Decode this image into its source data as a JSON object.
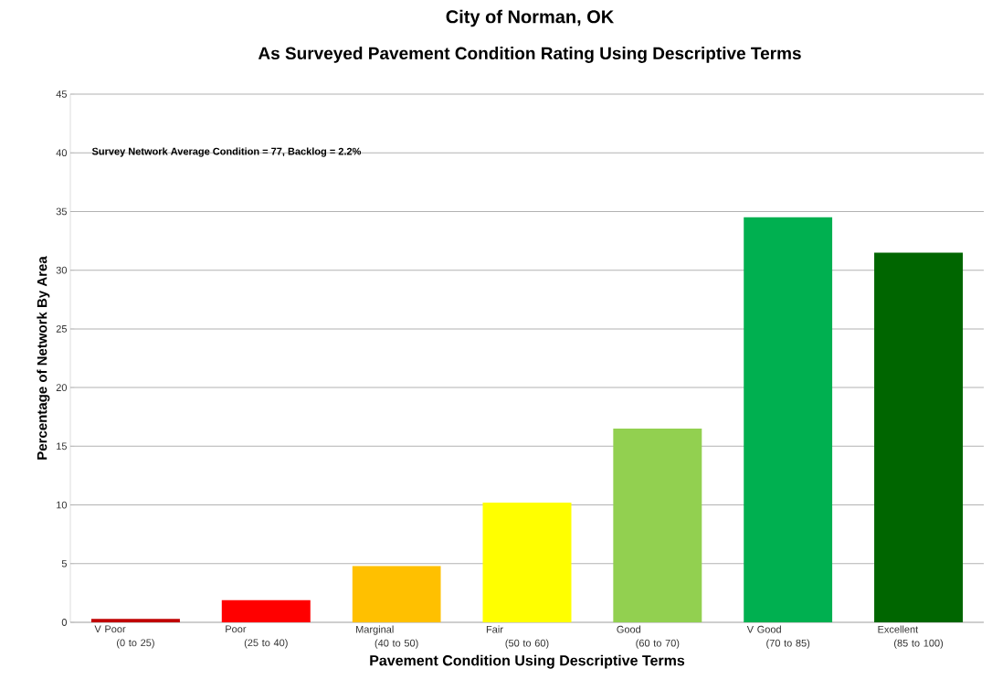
{
  "chart_data": {
    "type": "bar",
    "title": "City of Norman, OK",
    "subtitle": "As Surveyed Pavement Condition Rating Using Descriptive Terms",
    "xlabel": "Pavement Condition Using Descriptive Terms",
    "ylabel": "Percentage of Network By Area",
    "categories": [
      "V Poor (0 to 25)",
      "Poor (25 to 40)",
      "Marginal (40 to 50)",
      "Fair (50 to 60)",
      "Good (60 to 70)",
      "V Good (70 to 85)",
      "Excellent (85 to 100)"
    ],
    "values": [
      0.3,
      1.9,
      4.8,
      10.2,
      16.5,
      34.5,
      31.5
    ],
    "colors": [
      "#c00000",
      "#ff0000",
      "#ffc000",
      "#ffff00",
      "#92d050",
      "#00b050",
      "#006600"
    ],
    "ylim": [
      0,
      45
    ],
    "yticks": [
      0,
      5,
      10,
      15,
      20,
      25,
      30,
      35,
      40,
      45
    ],
    "grid": "y",
    "annotations": [
      "Survey Network Average Condition  = 77, Backlog = 2.2%"
    ]
  }
}
